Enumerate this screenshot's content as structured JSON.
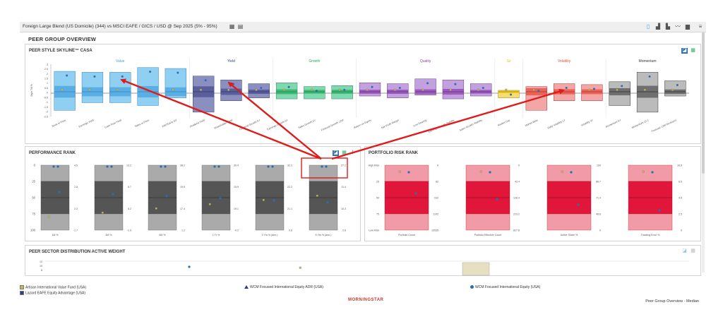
{
  "header": {
    "breadcrumb": "Foreign Large Blend (US Domicile) (344) vs MSCI EAFE / GICS / USD @ Sep 2025 (5% - 95%)"
  },
  "page_title": "PEER GROUP OVERVIEW",
  "skyline": {
    "title": "PEER STYLE SKYLINE™ CASA",
    "axis_label": "Style Tilt %",
    "y_ticks": [
      "3",
      "2.5",
      "2",
      "1.5",
      "1",
      "0.5",
      "0",
      "-0.5",
      "-1",
      "-1.5",
      "-2",
      "-2.5"
    ],
    "groups": [
      {
        "name": "Value",
        "color": "#4aa3df"
      },
      {
        "name": "Yield",
        "color": "#2c3e8c"
      },
      {
        "name": "Growth",
        "color": "#27ae60"
      },
      {
        "name": "Quality",
        "color": "#8e44ad"
      },
      {
        "name": "Sz",
        "color": "#e6c200"
      },
      {
        "name": "Volatility",
        "color": "#e74c3c"
      },
      {
        "name": "Momentum",
        "color": "#333333"
      }
    ],
    "factors": [
      "Book to Price",
      "Earnings Yield",
      "Cash Flow Yield",
      "Sales to Price",
      "EBITDA to EV",
      "Dividend Yield",
      "Shareholder Yield",
      "Dividend Growth 5Y",
      "Earnings Growth 5Y",
      "Sales Growth 5Y",
      "Forecast Growth 12M",
      "Return on Equity",
      "Net Profit Margin",
      "Low Gearing",
      "Earnings Growth Stability",
      "Sales Growth Stability",
      "Market Cap",
      "Market Beta",
      "Daily Volatility 1Y",
      "Volatility 3Y",
      "Momentum 5Y",
      "Momentum 12-1",
      "Forecast 12M Revisions"
    ]
  },
  "performance": {
    "title": "PERFORMANCE RANK",
    "left_ticks": [
      "0",
      "25",
      "50",
      "75",
      "100"
    ],
    "columns": [
      {
        "label": "1M %",
        "vals": [
          "4.5",
          "2.8",
          "2.2",
          "-1.7"
        ]
      },
      {
        "label": "3M %",
        "vals": [
          "13.2",
          "6.7",
          "5.2",
          "-1.9"
        ]
      },
      {
        "label": "6M %",
        "vals": [
          "38.2",
          "19.6",
          "17.4",
          "1.2"
        ]
      },
      {
        "label": "1 Yr %",
        "vals": [
          "39.4",
          "15.9",
          "19.1",
          "-0.2"
        ]
      },
      {
        "label": "3 Yrs % (ann.)",
        "vals": [
          "32.2",
          "22.3",
          "21.1",
          "9.8"
        ]
      },
      {
        "label": "5 Yrs % (ann.)",
        "vals": [
          "27.2",
          "11.4",
          "10.3",
          "2.6"
        ]
      }
    ]
  },
  "risk": {
    "title": "PORTFOLIO RISK RANK",
    "left_ticks": [
      "High Risk",
      "25",
      "50",
      "75",
      "Low Risk"
    ],
    "columns": [
      {
        "label": "Portfolio Count",
        "vals": [
          "0",
          "82",
          "232",
          "1102",
          "10535"
        ]
      },
      {
        "label": "Portfolio Effective Count",
        "vals": [
          "0",
          "43.4",
          "128.4",
          "223.2",
          "827.8"
        ]
      },
      {
        "label": "Active Share %",
        "vals": [
          "100",
          "86.7",
          "71.4",
          "48.6",
          "0"
        ]
      },
      {
        "label": "Tracking Error %",
        "vals": [
          "16.5",
          "6.5",
          "4.5",
          "2.5",
          "0"
        ]
      }
    ]
  },
  "sector": {
    "title": "PEER SECTOR DISTRIBUTION ACTIVE WEIGHT",
    "y_ticks": [
      "12",
      "10",
      "8"
    ]
  },
  "legend": {
    "items": [
      {
        "name": "Artisan International Value Fund (USA)",
        "marker": "square",
        "color": "#c8b94a"
      },
      {
        "name": "WCM Focused International Equity ADR (USA)",
        "marker": "triangle",
        "color": "#2c3e8c"
      },
      {
        "name": "WCM Focused International Equity (USA)",
        "marker": "circle",
        "color": "#2c6fb0"
      },
      {
        "name": "Lazard EAFE Equity Advantage (USA)",
        "marker": "square",
        "color": "#2c3e8c"
      }
    ]
  },
  "footer": {
    "logo": "MORNINGSTAR",
    "right_label": "Peer Group Overview - Median"
  }
}
